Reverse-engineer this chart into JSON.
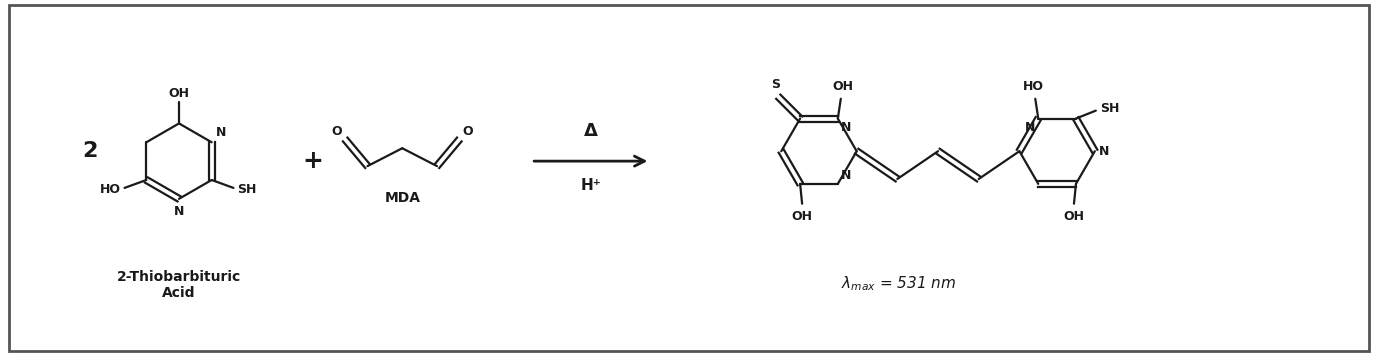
{
  "background_color": "#ffffff",
  "border_color": "#555555",
  "figsize": [
    13.78,
    3.56
  ],
  "dpi": 100,
  "label_2thiobarbituric_line1": "2-Thiobarbituric",
  "label_2thiobarbituric_line2": "Acid",
  "label_MDA": "MDA",
  "label_delta": "Δ",
  "label_hplus": "H⁺",
  "label_lambda_eq": "λ_max = 531 nm",
  "text_color": "#1a1a1a",
  "coeff_2": "2",
  "plus_sign": "+",
  "font_size_struct": 9,
  "font_size_label": 10,
  "font_size_coeff": 15
}
